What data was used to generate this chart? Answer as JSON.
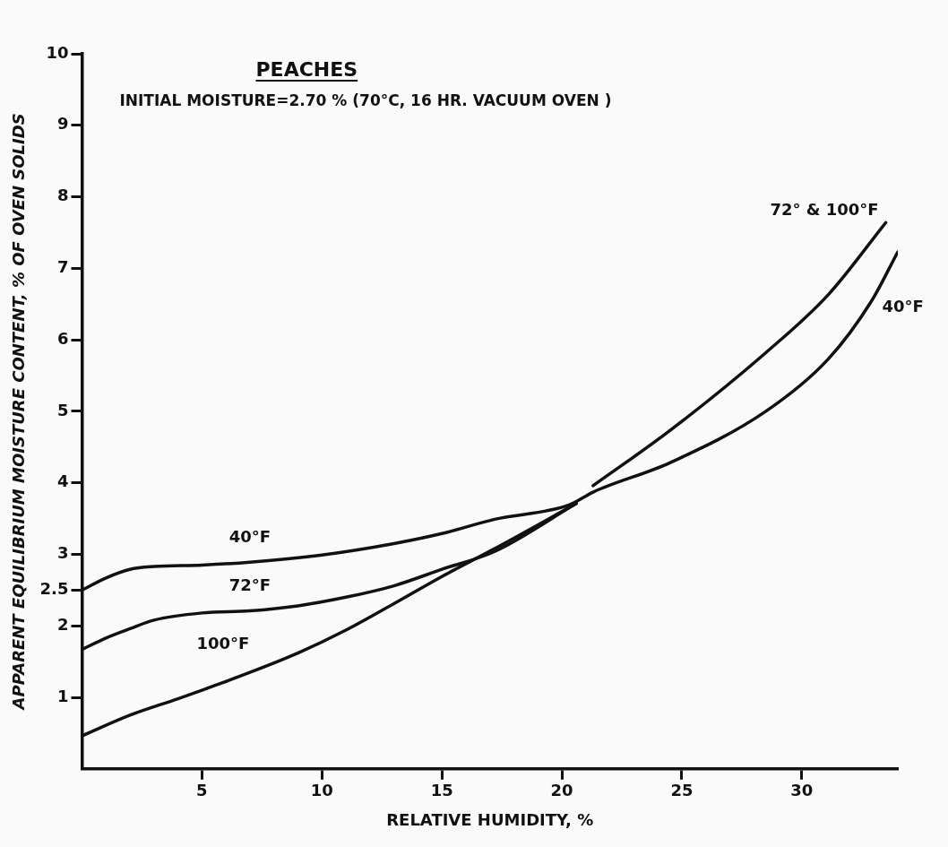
{
  "chart_data": {
    "type": "line",
    "title": "PEACHES",
    "subtitle": "INITIAL MOISTURE=2.70 % (70°C, 16 HR. VACUUM OVEN )",
    "xlabel": "RELATIVE HUMIDITY, %",
    "ylabel": "APPARENT EQUILIBRIUM MOISTURE CONTENT, % OF OVEN SOLIDS",
    "xlim": [
      0,
      34
    ],
    "xticks": [
      5,
      10,
      15,
      20,
      25,
      30
    ],
    "ylim": [
      0,
      10
    ],
    "yticks": [
      1,
      2,
      2.5,
      3,
      4,
      5,
      6,
      7,
      8,
      9,
      10
    ],
    "grid": false,
    "legend": false,
    "marker": "none",
    "line_style": "solid",
    "series": [
      {
        "name": "40°F",
        "color": "#111111",
        "x": [
          0,
          1,
          2,
          3,
          5,
          7,
          10,
          13,
          15,
          17.2,
          20.3,
          21.3,
          24.5,
          28.5,
          31.1,
          32.9,
          34
        ],
        "values": [
          2.5,
          2.67,
          2.79,
          2.83,
          2.85,
          2.89,
          2.99,
          3.15,
          3.29,
          3.49,
          3.69,
          3.87,
          4.28,
          5.0,
          5.73,
          6.54,
          7.23
        ]
      },
      {
        "name": "72°F",
        "color": "#111111",
        "x": [
          0,
          1,
          2,
          3,
          5,
          7,
          9,
          11,
          13,
          15,
          17.2,
          20.6
        ],
        "values": [
          1.67,
          1.83,
          1.96,
          2.08,
          2.18,
          2.21,
          2.28,
          2.4,
          2.56,
          2.79,
          3.04,
          3.71
        ]
      },
      {
        "name": "100°F",
        "color": "#111111",
        "x": [
          0,
          2,
          4,
          5,
          7,
          9,
          11,
          13,
          15,
          17.2,
          20.6
        ],
        "values": [
          0.46,
          0.75,
          0.98,
          1.1,
          1.35,
          1.62,
          1.94,
          2.31,
          2.69,
          3.08,
          3.71
        ]
      },
      {
        "name": "72° & 100°F",
        "color": "#111111",
        "x": [
          21.3,
          24.5,
          28.5,
          31.1,
          33.5
        ],
        "values": [
          3.96,
          4.73,
          5.82,
          6.63,
          7.64
        ]
      }
    ]
  }
}
